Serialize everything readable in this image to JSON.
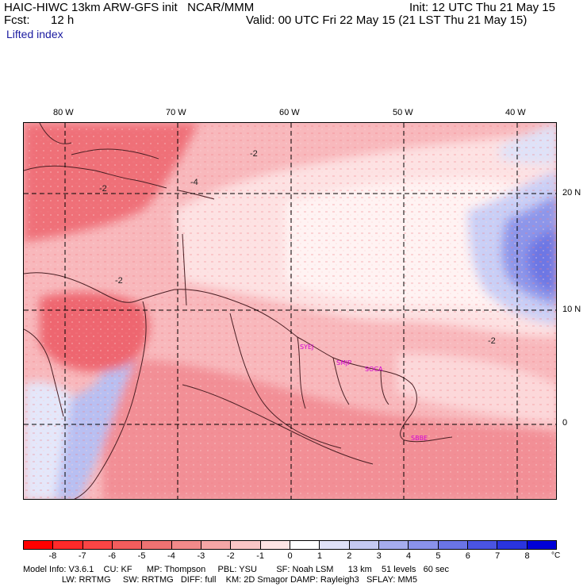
{
  "header": {
    "title_left": "HAIC-HIWC 13km ARW-GFS init   NCAR/MMM",
    "init": "Init: 12 UTC Thu 21 May 15",
    "fcst_label": "Fcst:",
    "fcst_value": "12 h",
    "valid": "Valid: 00 UTC Fri 22 May 15 (21 LST Thu 21 May 15)",
    "field_name": "Lifted index"
  },
  "map": {
    "lon_labels": [
      "80 W",
      "70 W",
      "60 W",
      "50 W",
      "40 W"
    ],
    "lat_labels": [
      "20 N",
      "10 N",
      "0"
    ],
    "contour_labels": [
      "-2",
      "-4",
      "-2",
      "-2",
      "-2"
    ],
    "sites": [
      "SYEJ",
      "SMJP",
      "SOCA",
      "SBBE"
    ],
    "colors": {
      "strong_neg": "#ee6670",
      "mid_neg": "#f5a0a6",
      "light_neg": "#fbd4d6",
      "near_zero": "#fff1f1",
      "pos_light": "#c9cff6",
      "pos_mid": "#8d96ea",
      "pos_strong": "#5a64e0"
    }
  },
  "colorbar": {
    "labels": [
      "-8",
      "-7",
      "-6",
      "-5",
      "-4",
      "-3",
      "-2",
      "-1",
      "0",
      "1",
      "2",
      "3",
      "4",
      "5",
      "6",
      "7",
      "8"
    ],
    "unit": "°C",
    "colors": [
      "#ff0000",
      "#fe2a2a",
      "#f94545",
      "#f25d5d",
      "#ee7272",
      "#f28a8a",
      "#f5a6a6",
      "#f9c6c6",
      "#fde4e4",
      "#ffffff",
      "#dfe1f7",
      "#c5c9f2",
      "#a6acee",
      "#8a92ea",
      "#6a74e6",
      "#4a54e2",
      "#2a34de",
      "#0000d8"
    ]
  },
  "footer": {
    "line1": "Model Info: V3.6.1    CU: KF      MP: Thompson     PBL: YSU        SF: Noah LSM      13 km    51 levels   60 sec",
    "line2": "                LW: RRTMG     SW: RRTMG   DIFF: full    KM: 2D Smagor DAMP: Rayleigh3   SFLAY: MM5"
  }
}
